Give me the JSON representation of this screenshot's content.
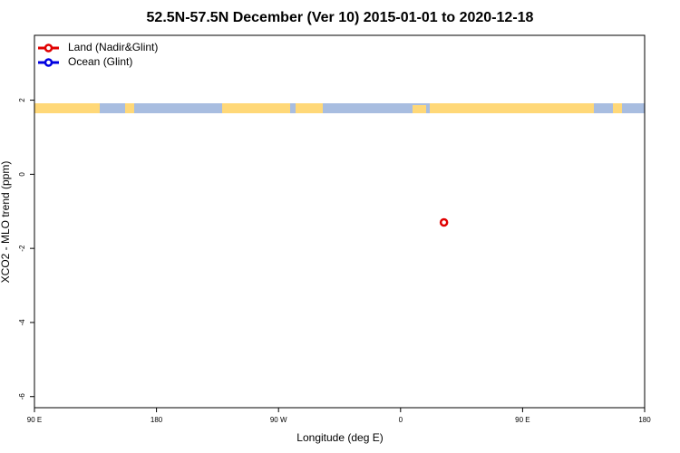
{
  "chart_data": {
    "type": "scatter",
    "title": "52.5N-57.5N December (Ver 10)   2015-01-01 to 2020-12-18",
    "xlabel": "Longitude (deg E)",
    "ylabel": "XCO2 - MLO trend (ppm)",
    "xlim": [
      -270,
      180
    ],
    "xticks": [
      {
        "value": -270,
        "label": "90 E"
      },
      {
        "value": -180,
        "label": "180"
      },
      {
        "value": -90,
        "label": "90 W"
      },
      0,
      {
        "value": 90,
        "label": "90 E"
      },
      180
    ],
    "ylim": [
      -6.3,
      3.75
    ],
    "yticks": [
      -6,
      -4,
      -2,
      0,
      2
    ],
    "legend": "top-left",
    "series": [
      {
        "name": "Land (Nadir&Glint)",
        "color": "#e00000",
        "x": [
          32
        ],
        "values": [
          -1.3
        ]
      },
      {
        "name": "Ocean (Glint)",
        "color": "#0000e0",
        "x": [],
        "values": []
      }
    ]
  }
}
